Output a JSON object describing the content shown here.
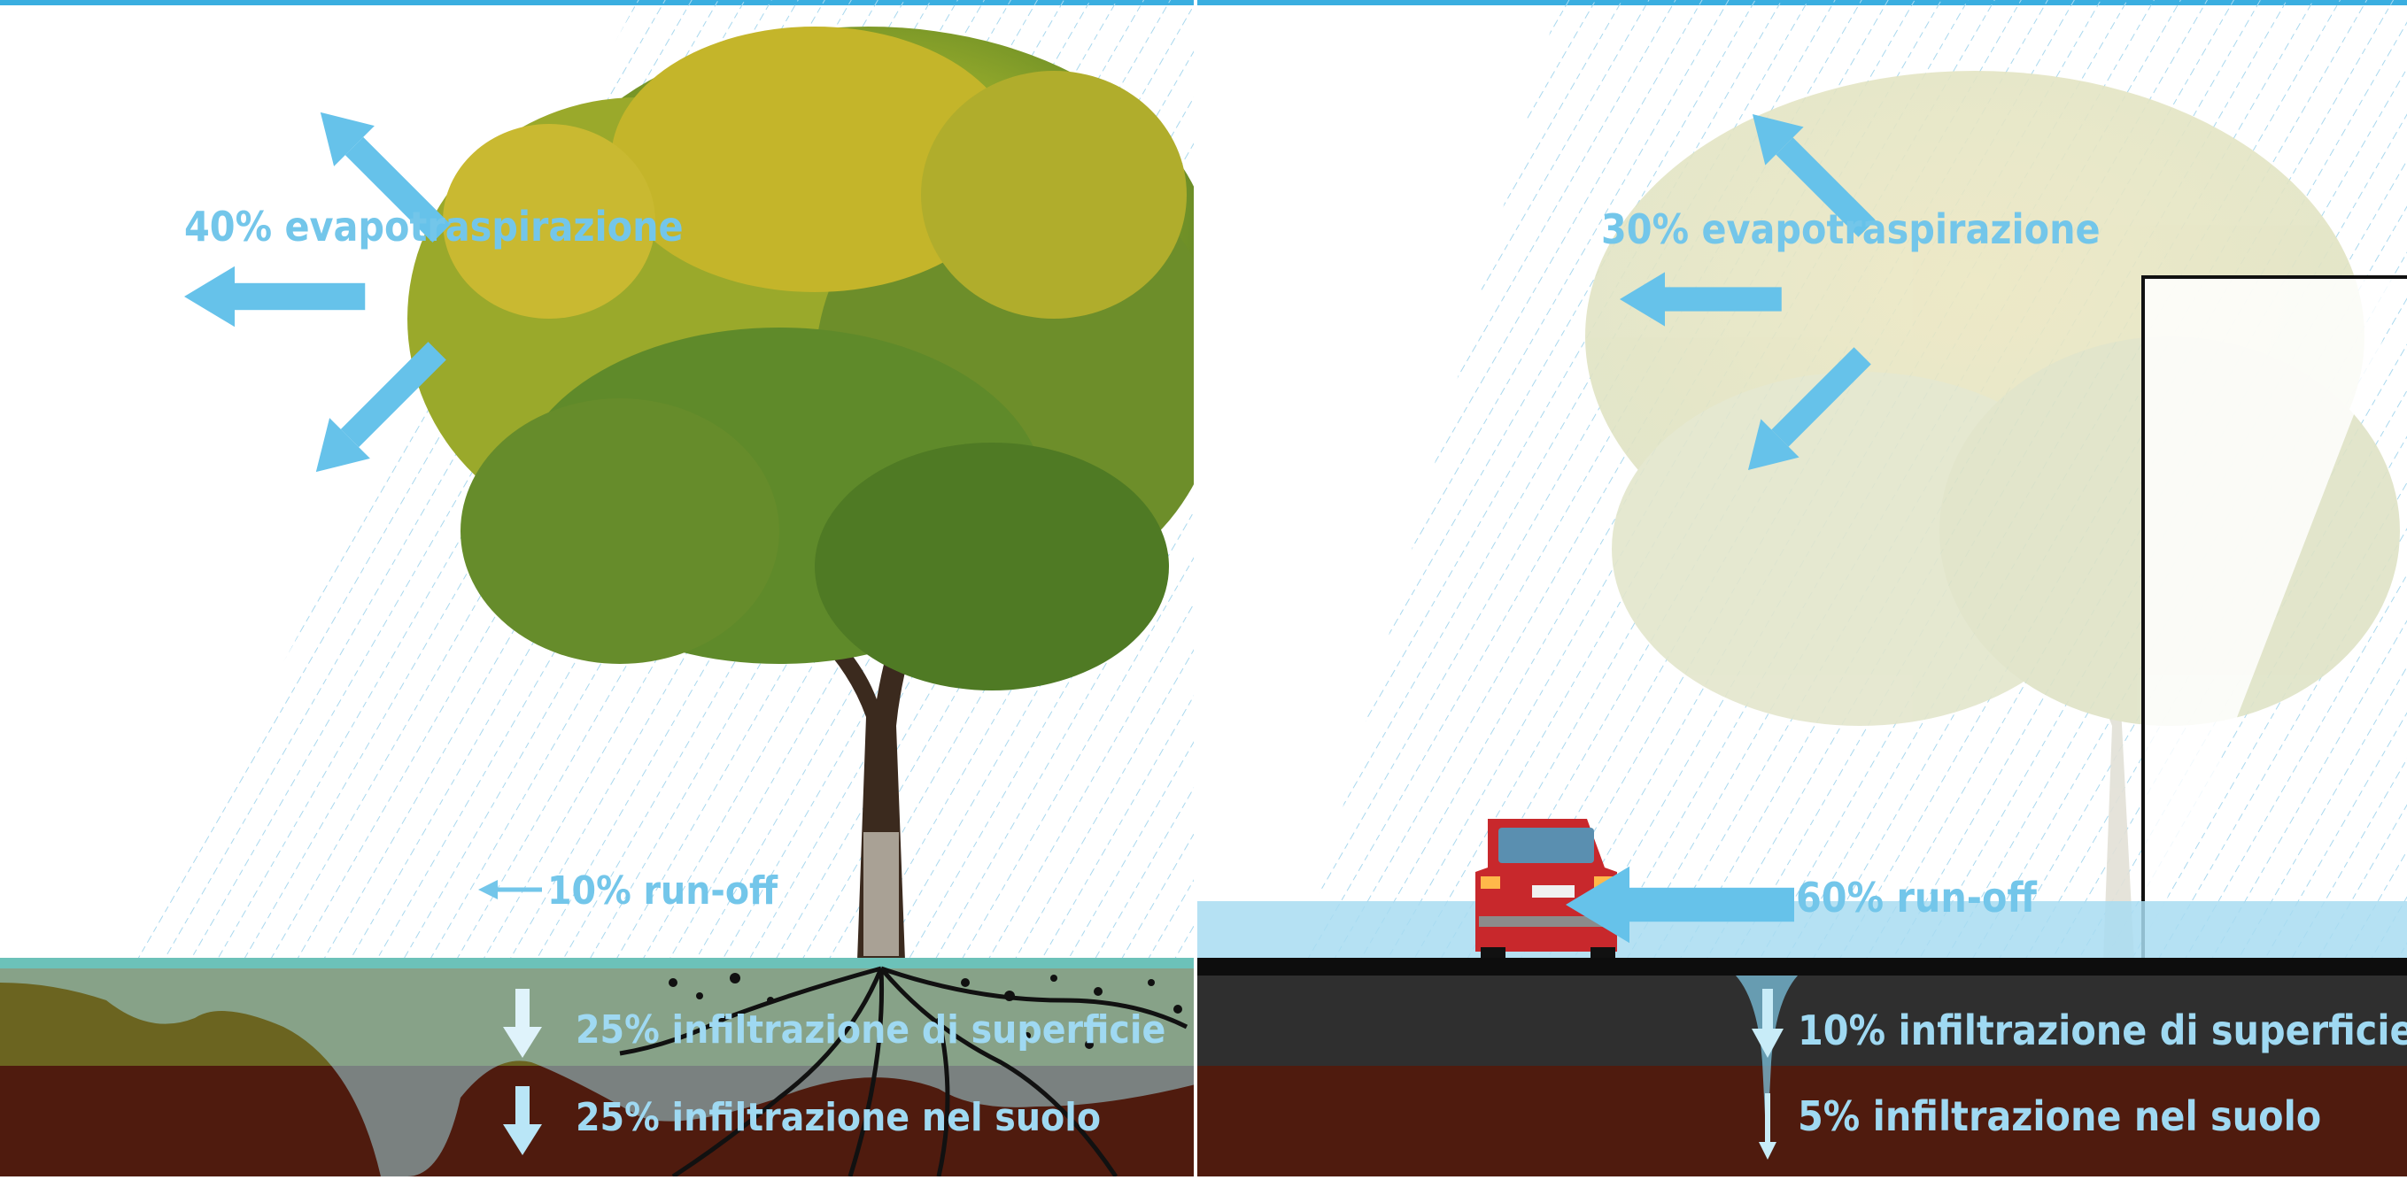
{
  "colors": {
    "accent": "#66c2ea",
    "top_border": "#3aaee0",
    "rain": "#bfe4f3",
    "label": "#73c6ea",
    "label_bright": "#9fd9f2",
    "topsoil": "#6b6420",
    "subsoil": "#4f1b0e",
    "asphalt": "#2f2f2f",
    "water_band": "#a8dcf1"
  },
  "icons": {
    "arrow": "arrow-icon",
    "tree": "tree-icon",
    "car": "car-icon"
  },
  "left": {
    "evapo_label": "40% evapotraspirazione",
    "runoff_label": "10% run-off",
    "surface_label": "25% infiltrazione di superficie",
    "soil_label": "25% infiltrazione nel suolo"
  },
  "right": {
    "evapo_label": "30% evapotraspirazione",
    "runoff_label": "60% run-off",
    "surface_label": "10% infiltrazione di superficie",
    "soil_label": "5% infiltrazione nel suolo"
  }
}
